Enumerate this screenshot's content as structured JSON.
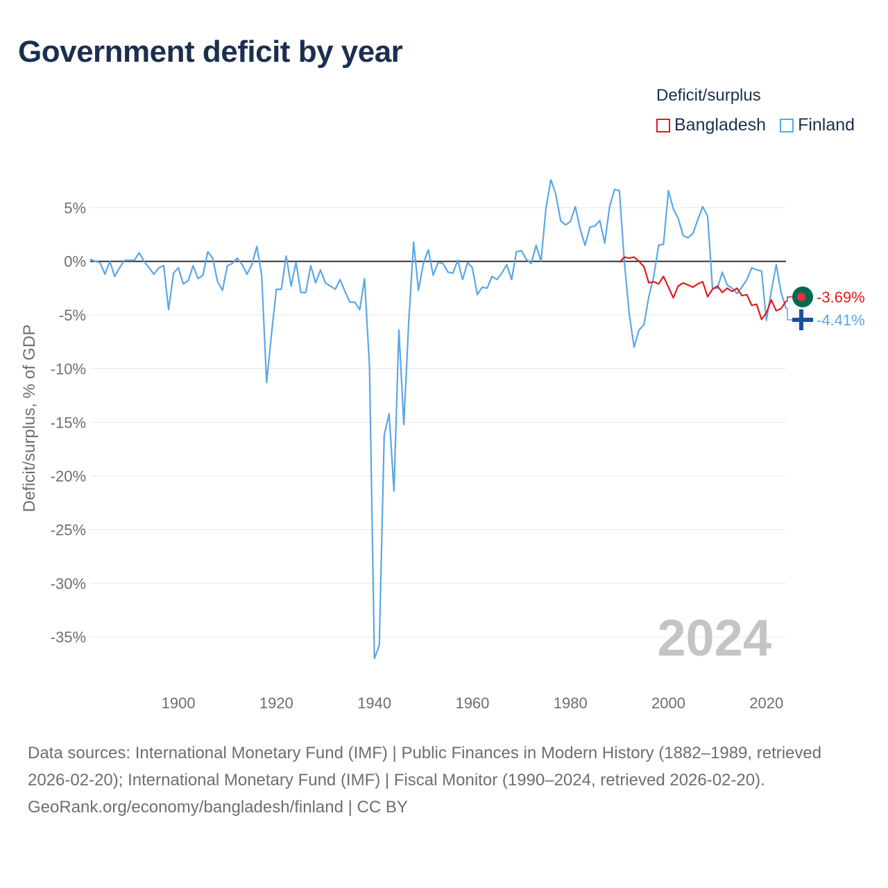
{
  "title": "Government deficit by year",
  "legend": {
    "title": "Deficit/surplus",
    "items": [
      {
        "name": "Bangladesh",
        "color": "#e0191c"
      },
      {
        "name": "Finland",
        "color": "#5aa7e6"
      }
    ]
  },
  "footer": {
    "sources": "Data sources: International Monetary Fund (IMF) | Public Finances in Modern History (1882–1989, retrieved 2026-02-20); International Monetary Fund (IMF) | Fiscal Monitor (1990–2024, retrieved 2026-02-20).",
    "credit": "GeoRank.org/economy/bangladesh/finland | CC BY"
  },
  "chart_data": {
    "type": "line",
    "title": "Government deficit by year",
    "xlabel": "",
    "ylabel": "Deficit/surplus, % of GDP",
    "xlim": [
      1882,
      2024
    ],
    "ylim": [
      -39,
      8
    ],
    "x_ticks": [
      1900,
      1920,
      1940,
      1960,
      1980,
      2000,
      2020
    ],
    "y_ticks": [
      {
        "value": 5,
        "label": "5%"
      },
      {
        "value": 0,
        "label": "0%"
      },
      {
        "value": -5,
        "label": "-5%"
      },
      {
        "value": -10,
        "label": "-10%"
      },
      {
        "value": -15,
        "label": "-15%"
      },
      {
        "value": -20,
        "label": "-20%"
      },
      {
        "value": -25,
        "label": "-25%"
      },
      {
        "value": -30,
        "label": "-30%"
      },
      {
        "value": -35,
        "label": "-35%"
      }
    ],
    "year_watermark": "2024",
    "series": [
      {
        "name": "Bangladesh",
        "color": "#e0191c",
        "end_label": "-3.69%",
        "start_year": 1990,
        "values": [
          -0.1,
          0.4,
          0.3,
          0.4,
          0.0,
          -0.5,
          -2.0,
          -1.9,
          -2.1,
          -1.4,
          -2.4,
          -3.4,
          -2.3,
          -2.0,
          -2.2,
          -2.4,
          -2.1,
          -1.9,
          -3.3,
          -2.6,
          -2.3,
          -2.9,
          -2.5,
          -2.8,
          -2.5,
          -3.2,
          -3.1,
          -4.1,
          -4.0,
          -5.4,
          -4.8,
          -3.6,
          -4.6,
          -4.4,
          -3.7
        ]
      },
      {
        "name": "Finland",
        "color": "#5aa7e6",
        "end_label": "-4.41%",
        "start_year": 1882,
        "values": [
          0.2,
          0.0,
          -0.1,
          -1.2,
          0.0,
          -1.4,
          -0.6,
          0.1,
          0.1,
          0.1,
          0.8,
          0.0,
          -0.6,
          -1.2,
          -0.6,
          -0.4,
          -4.5,
          -1.1,
          -0.6,
          -2.1,
          -1.8,
          -0.4,
          -1.6,
          -1.3,
          0.9,
          0.3,
          -1.9,
          -2.7,
          -0.4,
          -0.2,
          0.3,
          -0.3,
          -1.2,
          -0.3,
          1.4,
          -1.3,
          -11.3,
          -6.8,
          -2.6,
          -2.6,
          0.5,
          -2.3,
          -0.1,
          -2.9,
          -2.9,
          -0.4,
          -2.0,
          -0.8,
          -2.0,
          -2.3,
          -2.6,
          -1.7,
          -2.8,
          -3.8,
          -3.8,
          -4.5,
          -1.6,
          -9.8,
          -37.0,
          -35.8,
          -16.2,
          -14.2,
          -21.4,
          -6.4,
          -15.2,
          -5.7,
          1.8,
          -2.7,
          -0.2,
          1.1,
          -1.3,
          -0.1,
          -0.2,
          -1.0,
          -1.1,
          0.1,
          -1.7,
          -0.1,
          -0.6,
          -3.1,
          -2.4,
          -2.5,
          -1.4,
          -1.7,
          -1.1,
          -0.3,
          -1.7,
          0.9,
          1.0,
          0.2,
          -0.2,
          1.5,
          0.0,
          4.9,
          7.6,
          6.3,
          3.8,
          3.4,
          3.7,
          5.1,
          3.0,
          1.5,
          3.2,
          3.3,
          3.8,
          1.7,
          5.1,
          6.7,
          6.6,
          0.0,
          -4.9,
          -8.0,
          -6.4,
          -5.9,
          -3.3,
          -1.4,
          1.5,
          1.6,
          6.6,
          4.9,
          4.0,
          2.4,
          2.2,
          2.6,
          3.9,
          5.1,
          4.2,
          -2.5,
          -2.5,
          -1.0,
          -2.2,
          -2.5,
          -3.0,
          -2.4,
          -1.7,
          -0.6,
          -0.8,
          -0.9,
          -5.5,
          -2.8,
          -0.3,
          -2.9,
          -4.4
        ]
      }
    ]
  }
}
